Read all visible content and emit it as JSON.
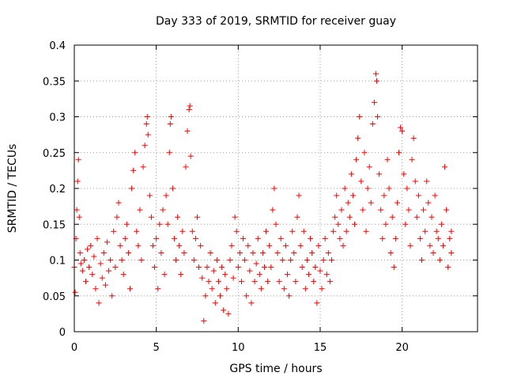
{
  "chart_data": {
    "type": "scatter",
    "title": "Day 333 of 2019, SRMTID for receiver guay",
    "xlabel": "GPS time / hours",
    "ylabel": "SRMTID / TECUs",
    "xlim": [
      0,
      24.6
    ],
    "ylim": [
      0,
      0.4
    ],
    "xticks": [
      0,
      5,
      10,
      15,
      20
    ],
    "xtick_labels": [
      "0",
      "5",
      "10",
      "15",
      "20"
    ],
    "yticks": [
      0,
      0.05,
      0.1,
      0.15,
      0.2,
      0.25,
      0.3,
      0.35,
      0.4
    ],
    "ytick_labels": [
      "0",
      "0.05",
      "0.1",
      "0.15",
      "0.2",
      "0.25",
      "0.3",
      "0.35",
      "0.4"
    ],
    "grid": true,
    "marker": "plus",
    "series": [
      {
        "name": "SRMTID",
        "color": "#ff0000",
        "points": [
          [
            0.0,
            0.09
          ],
          [
            0.05,
            0.055
          ],
          [
            0.1,
            0.13
          ],
          [
            0.15,
            0.17
          ],
          [
            0.2,
            0.21
          ],
          [
            0.25,
            0.24
          ],
          [
            0.3,
            0.16
          ],
          [
            0.35,
            0.11
          ],
          [
            0.4,
            0.095
          ],
          [
            0.5,
            0.085
          ],
          [
            0.6,
            0.1
          ],
          [
            0.7,
            0.07
          ],
          [
            0.8,
            0.115
          ],
          [
            0.9,
            0.09
          ],
          [
            1.0,
            0.12
          ],
          [
            1.1,
            0.08
          ],
          [
            1.2,
            0.105
          ],
          [
            1.3,
            0.06
          ],
          [
            1.4,
            0.13
          ],
          [
            1.5,
            0.04
          ],
          [
            1.6,
            0.095
          ],
          [
            1.7,
            0.075
          ],
          [
            1.8,
            0.11
          ],
          [
            1.9,
            0.065
          ],
          [
            2.0,
            0.125
          ],
          [
            2.1,
            0.085
          ],
          [
            2.2,
            0.1
          ],
          [
            2.3,
            0.05
          ],
          [
            2.4,
            0.14
          ],
          [
            2.5,
            0.09
          ],
          [
            2.6,
            0.16
          ],
          [
            2.7,
            0.18
          ],
          [
            2.8,
            0.12
          ],
          [
            2.9,
            0.1
          ],
          [
            3.0,
            0.08
          ],
          [
            3.1,
            0.13
          ],
          [
            3.2,
            0.15
          ],
          [
            3.3,
            0.11
          ],
          [
            3.4,
            0.06
          ],
          [
            3.5,
            0.2
          ],
          [
            3.6,
            0.225
          ],
          [
            3.7,
            0.25
          ],
          [
            3.8,
            0.14
          ],
          [
            3.9,
            0.12
          ],
          [
            4.0,
            0.17
          ],
          [
            4.1,
            0.1
          ],
          [
            4.2,
            0.23
          ],
          [
            4.3,
            0.26
          ],
          [
            4.4,
            0.29
          ],
          [
            4.45,
            0.3
          ],
          [
            4.5,
            0.275
          ],
          [
            4.6,
            0.19
          ],
          [
            4.7,
            0.16
          ],
          [
            4.8,
            0.12
          ],
          [
            4.9,
            0.09
          ],
          [
            5.0,
            0.13
          ],
          [
            5.1,
            0.06
          ],
          [
            5.2,
            0.15
          ],
          [
            5.3,
            0.11
          ],
          [
            5.4,
            0.17
          ],
          [
            5.5,
            0.08
          ],
          [
            5.6,
            0.19
          ],
          [
            5.7,
            0.15
          ],
          [
            5.8,
            0.25
          ],
          [
            5.85,
            0.29
          ],
          [
            5.9,
            0.3
          ],
          [
            6.0,
            0.2
          ],
          [
            6.1,
            0.13
          ],
          [
            6.2,
            0.1
          ],
          [
            6.3,
            0.16
          ],
          [
            6.4,
            0.12
          ],
          [
            6.5,
            0.08
          ],
          [
            6.6,
            0.14
          ],
          [
            6.7,
            0.11
          ],
          [
            6.8,
            0.23
          ],
          [
            6.9,
            0.28
          ],
          [
            7.0,
            0.31
          ],
          [
            7.05,
            0.315
          ],
          [
            7.1,
            0.245
          ],
          [
            7.2,
            0.14
          ],
          [
            7.3,
            0.1
          ],
          [
            7.4,
            0.13
          ],
          [
            7.5,
            0.16
          ],
          [
            7.6,
            0.09
          ],
          [
            7.7,
            0.12
          ],
          [
            7.8,
            0.075
          ],
          [
            7.9,
            0.015
          ],
          [
            8.0,
            0.05
          ],
          [
            8.1,
            0.09
          ],
          [
            8.2,
            0.07
          ],
          [
            8.3,
            0.11
          ],
          [
            8.4,
            0.06
          ],
          [
            8.5,
            0.085
          ],
          [
            8.6,
            0.04
          ],
          [
            8.7,
            0.1
          ],
          [
            8.8,
            0.07
          ],
          [
            8.9,
            0.05
          ],
          [
            9.0,
            0.09
          ],
          [
            9.1,
            0.03
          ],
          [
            9.2,
            0.08
          ],
          [
            9.3,
            0.06
          ],
          [
            9.4,
            0.025
          ],
          [
            9.5,
            0.1
          ],
          [
            9.6,
            0.12
          ],
          [
            9.7,
            0.075
          ],
          [
            9.8,
            0.16
          ],
          [
            9.9,
            0.14
          ],
          [
            10.0,
            0.09
          ],
          [
            10.1,
            0.11
          ],
          [
            10.2,
            0.07
          ],
          [
            10.3,
            0.13
          ],
          [
            10.4,
            0.1
          ],
          [
            10.5,
            0.05
          ],
          [
            10.6,
            0.12
          ],
          [
            10.7,
            0.085
          ],
          [
            10.8,
            0.04
          ],
          [
            10.9,
            0.11
          ],
          [
            11.0,
            0.07
          ],
          [
            11.1,
            0.095
          ],
          [
            11.2,
            0.13
          ],
          [
            11.3,
            0.08
          ],
          [
            11.4,
            0.06
          ],
          [
            11.5,
            0.11
          ],
          [
            11.6,
            0.09
          ],
          [
            11.7,
            0.14
          ],
          [
            11.8,
            0.07
          ],
          [
            11.9,
            0.12
          ],
          [
            12.0,
            0.09
          ],
          [
            12.1,
            0.17
          ],
          [
            12.2,
            0.2
          ],
          [
            12.3,
            0.15
          ],
          [
            12.4,
            0.11
          ],
          [
            12.5,
            0.07
          ],
          [
            12.6,
            0.13
          ],
          [
            12.7,
            0.1
          ],
          [
            12.8,
            0.06
          ],
          [
            12.9,
            0.12
          ],
          [
            13.0,
            0.08
          ],
          [
            13.1,
            0.05
          ],
          [
            13.2,
            0.1
          ],
          [
            13.3,
            0.14
          ],
          [
            13.4,
            0.11
          ],
          [
            13.5,
            0.07
          ],
          [
            13.6,
            0.16
          ],
          [
            13.7,
            0.19
          ],
          [
            13.8,
            0.12
          ],
          [
            13.9,
            0.09
          ],
          [
            14.0,
            0.14
          ],
          [
            14.1,
            0.06
          ],
          [
            14.2,
            0.1
          ],
          [
            14.3,
            0.08
          ],
          [
            14.4,
            0.13
          ],
          [
            14.5,
            0.11
          ],
          [
            14.6,
            0.07
          ],
          [
            14.7,
            0.09
          ],
          [
            14.8,
            0.04
          ],
          [
            14.9,
            0.12
          ],
          [
            15.0,
            0.085
          ],
          [
            15.1,
            0.06
          ],
          [
            15.2,
            0.1
          ],
          [
            15.3,
            0.13
          ],
          [
            15.4,
            0.08
          ],
          [
            15.5,
            0.11
          ],
          [
            15.6,
            0.07
          ],
          [
            15.7,
            0.1
          ],
          [
            15.8,
            0.14
          ],
          [
            15.9,
            0.16
          ],
          [
            16.0,
            0.19
          ],
          [
            16.1,
            0.15
          ],
          [
            16.2,
            0.13
          ],
          [
            16.3,
            0.17
          ],
          [
            16.4,
            0.12
          ],
          [
            16.5,
            0.2
          ],
          [
            16.6,
            0.14
          ],
          [
            16.7,
            0.18
          ],
          [
            16.8,
            0.16
          ],
          [
            16.9,
            0.22
          ],
          [
            17.0,
            0.19
          ],
          [
            17.1,
            0.15
          ],
          [
            17.2,
            0.24
          ],
          [
            17.3,
            0.27
          ],
          [
            17.4,
            0.3
          ],
          [
            17.5,
            0.21
          ],
          [
            17.6,
            0.17
          ],
          [
            17.7,
            0.25
          ],
          [
            17.8,
            0.14
          ],
          [
            17.9,
            0.2
          ],
          [
            18.0,
            0.23
          ],
          [
            18.1,
            0.18
          ],
          [
            18.2,
            0.29
          ],
          [
            18.3,
            0.32
          ],
          [
            18.4,
            0.36
          ],
          [
            18.45,
            0.35
          ],
          [
            18.5,
            0.3
          ],
          [
            18.6,
            0.22
          ],
          [
            18.7,
            0.17
          ],
          [
            18.8,
            0.13
          ],
          [
            18.9,
            0.19
          ],
          [
            19.0,
            0.15
          ],
          [
            19.1,
            0.24
          ],
          [
            19.2,
            0.2
          ],
          [
            19.3,
            0.11
          ],
          [
            19.4,
            0.16
          ],
          [
            19.5,
            0.09
          ],
          [
            19.6,
            0.13
          ],
          [
            19.7,
            0.18
          ],
          [
            19.8,
            0.25
          ],
          [
            19.9,
            0.285
          ],
          [
            20.0,
            0.28
          ],
          [
            20.1,
            0.22
          ],
          [
            20.2,
            0.15
          ],
          [
            20.3,
            0.2
          ],
          [
            20.4,
            0.17
          ],
          [
            20.5,
            0.12
          ],
          [
            20.6,
            0.24
          ],
          [
            20.7,
            0.27
          ],
          [
            20.8,
            0.21
          ],
          [
            20.9,
            0.16
          ],
          [
            21.0,
            0.19
          ],
          [
            21.1,
            0.13
          ],
          [
            21.2,
            0.1
          ],
          [
            21.3,
            0.17
          ],
          [
            21.4,
            0.14
          ],
          [
            21.5,
            0.21
          ],
          [
            21.6,
            0.18
          ],
          [
            21.7,
            0.12
          ],
          [
            21.8,
            0.16
          ],
          [
            21.9,
            0.11
          ],
          [
            22.0,
            0.19
          ],
          [
            22.1,
            0.14
          ],
          [
            22.2,
            0.13
          ],
          [
            22.3,
            0.1
          ],
          [
            22.4,
            0.15
          ],
          [
            22.5,
            0.12
          ],
          [
            22.6,
            0.23
          ],
          [
            22.7,
            0.17
          ],
          [
            22.8,
            0.09
          ],
          [
            22.9,
            0.13
          ],
          [
            23.0,
            0.11
          ],
          [
            23.0,
            0.14
          ]
        ]
      }
    ]
  }
}
